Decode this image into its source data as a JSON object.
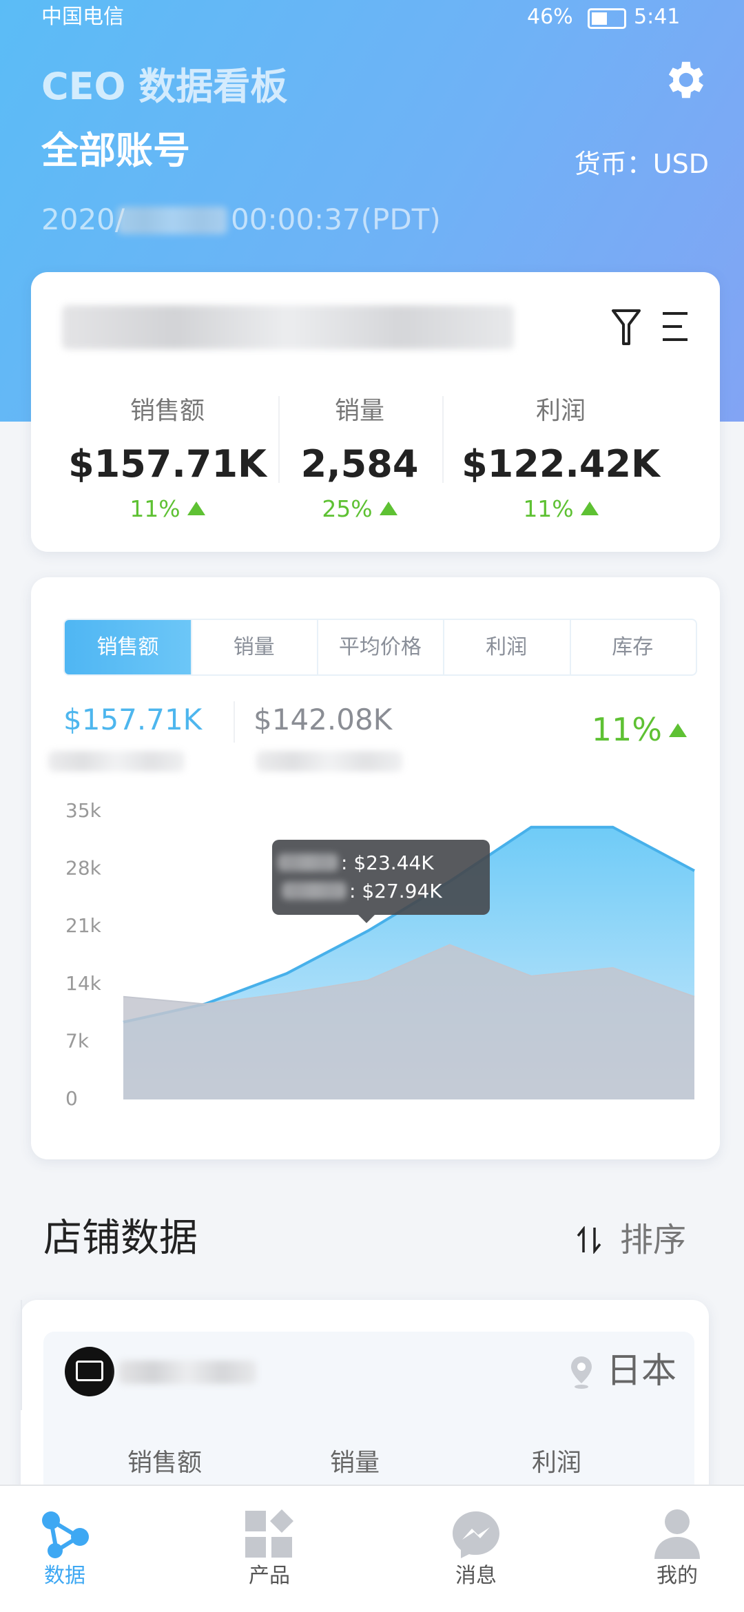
{
  "status_bar": {
    "carrier": "中国电信",
    "battery": "46%",
    "time": "5:41"
  },
  "header": {
    "title": "CEO 数据看板",
    "account": "全部账号",
    "currency": "货币：USD",
    "date_prefix": "2020/",
    "time_suffix": "00:00:37(PDT)"
  },
  "summary": {
    "metrics": [
      {
        "label": "销售额",
        "value": "$157.71K",
        "change": "11%"
      },
      {
        "label": "销量",
        "value": "2,584",
        "change": "25%"
      },
      {
        "label": "利润",
        "value": "$122.42K",
        "change": "11%"
      }
    ]
  },
  "trend": {
    "tabs": [
      "销售额",
      "销量",
      "平均价格",
      "利润",
      "库存"
    ],
    "current": "$157.71K",
    "previous": "$142.08K",
    "change": "11%",
    "tooltip": [
      ": $23.44K",
      ": $27.94K"
    ]
  },
  "sales_chart": {
    "type": "area",
    "ylim": [
      0,
      35000
    ],
    "yticks": [
      0,
      {
        "value": 7000,
        "label": "7k"
      },
      {
        "value": 14000,
        "label": "14k"
      },
      {
        "value": 21000,
        "label": "21k"
      },
      {
        "value": 28000,
        "label": "28k"
      },
      {
        "value": 35000,
        "label": "35k"
      }
    ],
    "series": [
      {
        "color": "#6fcbf7",
        "values": [
          9400,
          11600,
          15300,
          20500,
          26500,
          33100,
          33100,
          27800
        ]
      },
      {
        "color": "#c3c6cf",
        "values": [
          12500,
          11600,
          12900,
          14500,
          18800,
          15000,
          16000,
          12500
        ]
      }
    ]
  },
  "stores": {
    "section_title": "店铺数据",
    "sort": "排序",
    "store": {
      "country": "日本",
      "metric_labels": [
        "销售额",
        "销量",
        "利润"
      ]
    }
  },
  "nav": {
    "items": [
      "数据",
      "产品",
      "消息",
      "我的"
    ]
  }
}
